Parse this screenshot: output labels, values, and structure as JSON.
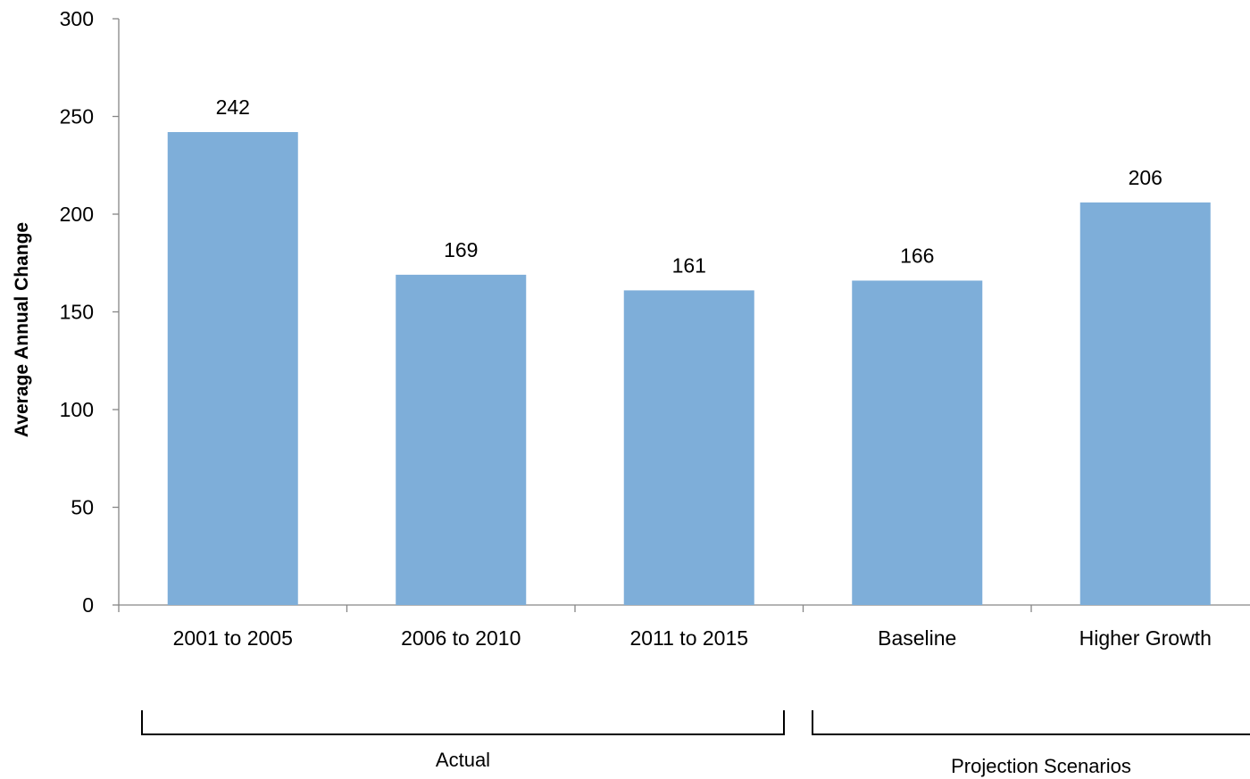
{
  "chart_data": {
    "type": "bar",
    "title": "",
    "xlabel": "",
    "ylabel": "Average Annual Change",
    "categories": [
      "2001 to 2005",
      "2006 to 2010",
      "2011 to 2015",
      "Baseline",
      "Higher Growth"
    ],
    "values": [
      242,
      169,
      161,
      166,
      206
    ],
    "data_labels": [
      "242",
      "169",
      "161",
      "166",
      "206"
    ],
    "ylim": [
      0,
      300
    ],
    "y_ticks": [
      0,
      50,
      100,
      150,
      200,
      250,
      300
    ],
    "y_tick_labels": [
      "0",
      "50",
      "100",
      "150",
      "200",
      "250",
      "300"
    ],
    "bar_color": "#7eaed9",
    "grid": false,
    "legend": "none",
    "groups": [
      {
        "label": "Actual",
        "categories": [
          "2001 to 2005",
          "2006 to 2010",
          "2011 to 2015"
        ]
      },
      {
        "label": "Projection Scenarios",
        "categories": [
          "Baseline",
          "Higher Growth"
        ]
      }
    ]
  }
}
